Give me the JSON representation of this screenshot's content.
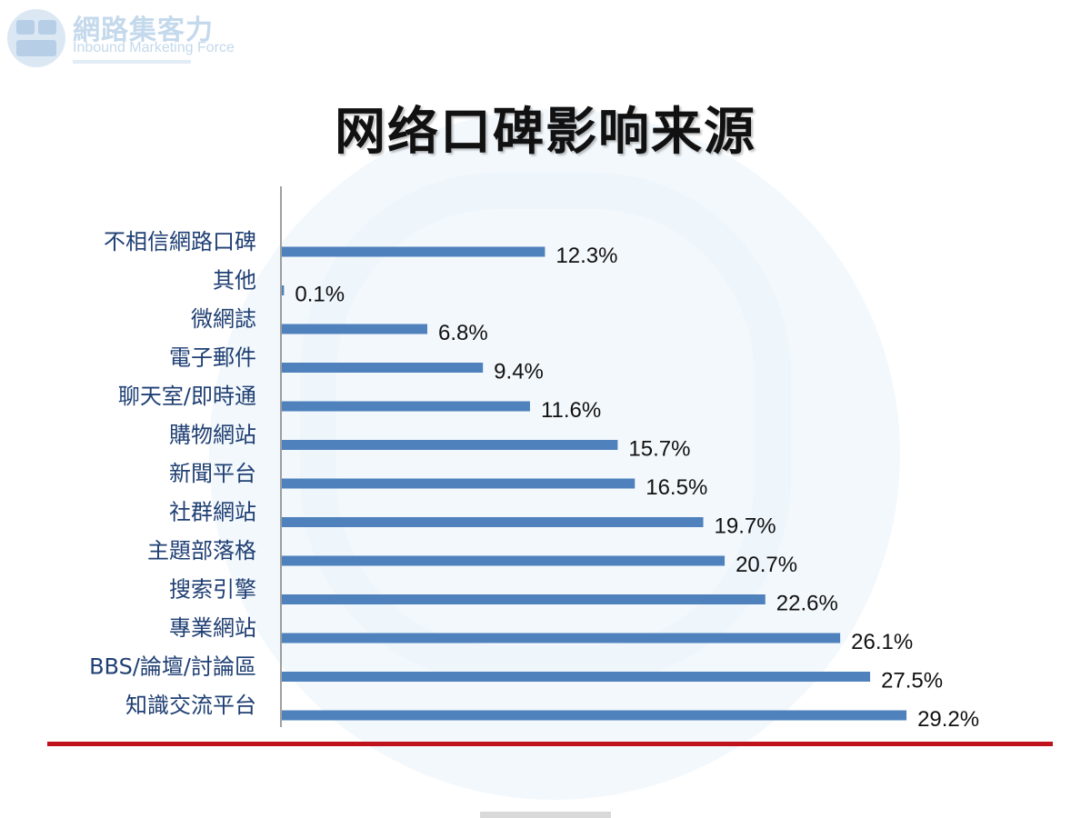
{
  "logo": {
    "chinese_name": "網路集客力",
    "english_name": "Inbound Marketing Force"
  },
  "colors": {
    "bar": "#4f81bd",
    "category_label": "#1f3f73",
    "rule": "#c0121c",
    "watermark": "#e9f2f9"
  },
  "chart_data": {
    "type": "bar",
    "orientation": "horizontal",
    "title": "网络口碑影响来源",
    "xlabel": "",
    "ylabel": "",
    "xlim": [
      0,
      30
    ],
    "grid": false,
    "legend": "none",
    "categories": [
      "不相信網路口碑",
      "其他",
      "微網誌",
      "電子郵件",
      "聊天室/即時通",
      "購物網站",
      "新聞平台",
      "社群網站",
      "主題部落格",
      "搜索引擎",
      "專業網站",
      "BBS/論壇/討論區",
      "知識交流平台"
    ],
    "values": [
      12.3,
      0.1,
      6.8,
      9.4,
      11.6,
      15.7,
      16.5,
      19.7,
      20.7,
      22.6,
      26.1,
      27.5,
      29.2
    ],
    "value_labels": [
      "12.3%",
      "0.1%",
      "6.8%",
      "9.4%",
      "11.6%",
      "15.7%",
      "16.5%",
      "19.7%",
      "20.7%",
      "22.6%",
      "26.1%",
      "27.5%",
      "29.2%"
    ]
  }
}
